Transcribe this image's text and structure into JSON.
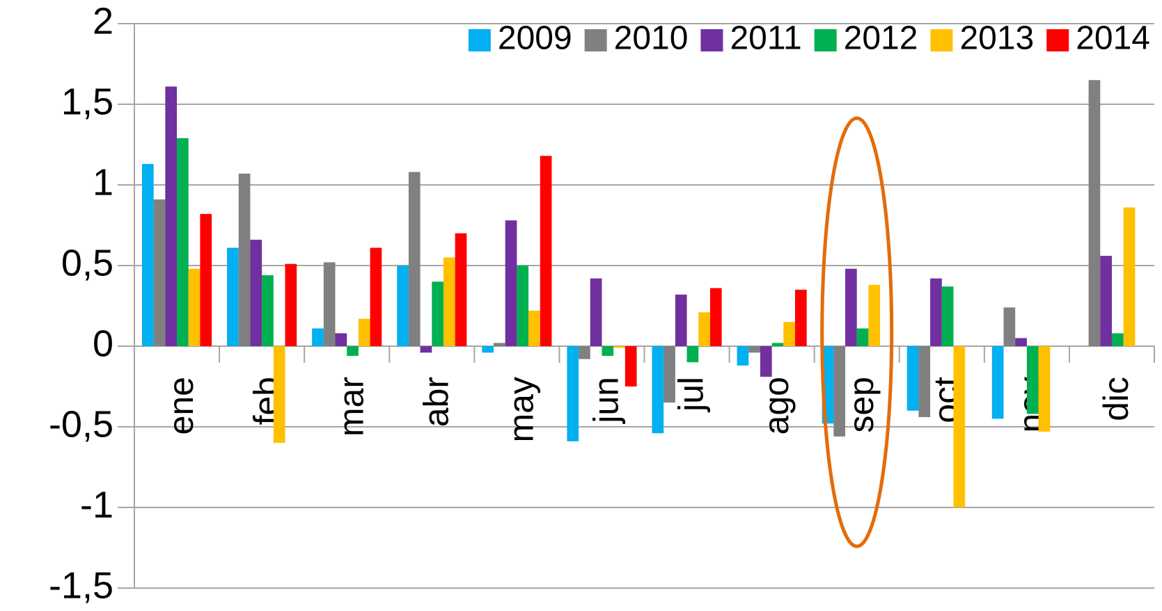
{
  "chart_data": {
    "type": "bar",
    "categories": [
      "ene",
      "feb",
      "mar",
      "abr",
      "may",
      "jun",
      "jul",
      "ago",
      "sep",
      "oct",
      "nov",
      "dic"
    ],
    "series": [
      {
        "name": "2009",
        "color": "#00b0f0",
        "values": [
          1.13,
          0.61,
          0.11,
          0.5,
          -0.04,
          -0.59,
          -0.54,
          -0.12,
          -0.48,
          -0.4,
          -0.45,
          null
        ]
      },
      {
        "name": "2010",
        "color": "#808080",
        "values": [
          0.91,
          1.07,
          0.52,
          1.08,
          0.02,
          -0.08,
          -0.35,
          -0.04,
          -0.56,
          -0.44,
          0.24,
          1.65
        ]
      },
      {
        "name": "2011",
        "color": "#7030a0",
        "values": [
          1.61,
          0.66,
          0.08,
          -0.04,
          0.78,
          0.42,
          0.32,
          -0.19,
          0.48,
          0.42,
          0.05,
          0.56
        ]
      },
      {
        "name": "2012",
        "color": "#00b050",
        "values": [
          1.29,
          0.44,
          -0.06,
          0.4,
          0.5,
          -0.06,
          -0.1,
          0.02,
          0.11,
          0.37,
          -0.42,
          0.08
        ]
      },
      {
        "name": "2013",
        "color": "#ffc000",
        "values": [
          0.48,
          -0.6,
          0.17,
          0.55,
          0.22,
          -0.01,
          0.21,
          0.15,
          0.38,
          -1.0,
          -0.53,
          0.86
        ]
      },
      {
        "name": "2014",
        "color": "#ff0000",
        "values": [
          0.82,
          0.51,
          0.61,
          0.7,
          1.18,
          -0.25,
          0.36,
          0.35,
          null,
          null,
          null,
          null
        ]
      }
    ],
    "ylim": [
      -1.5,
      2
    ],
    "yticks": [
      {
        "value": -1.5,
        "label": "-1,5"
      },
      -1,
      {
        "value": -0.5,
        "label": "-0,5"
      },
      0,
      {
        "value": 0.5,
        "label": "0,5"
      },
      1,
      {
        "value": 1.5,
        "label": "1,5"
      },
      2
    ],
    "grid": true,
    "legend": "top-right"
  }
}
